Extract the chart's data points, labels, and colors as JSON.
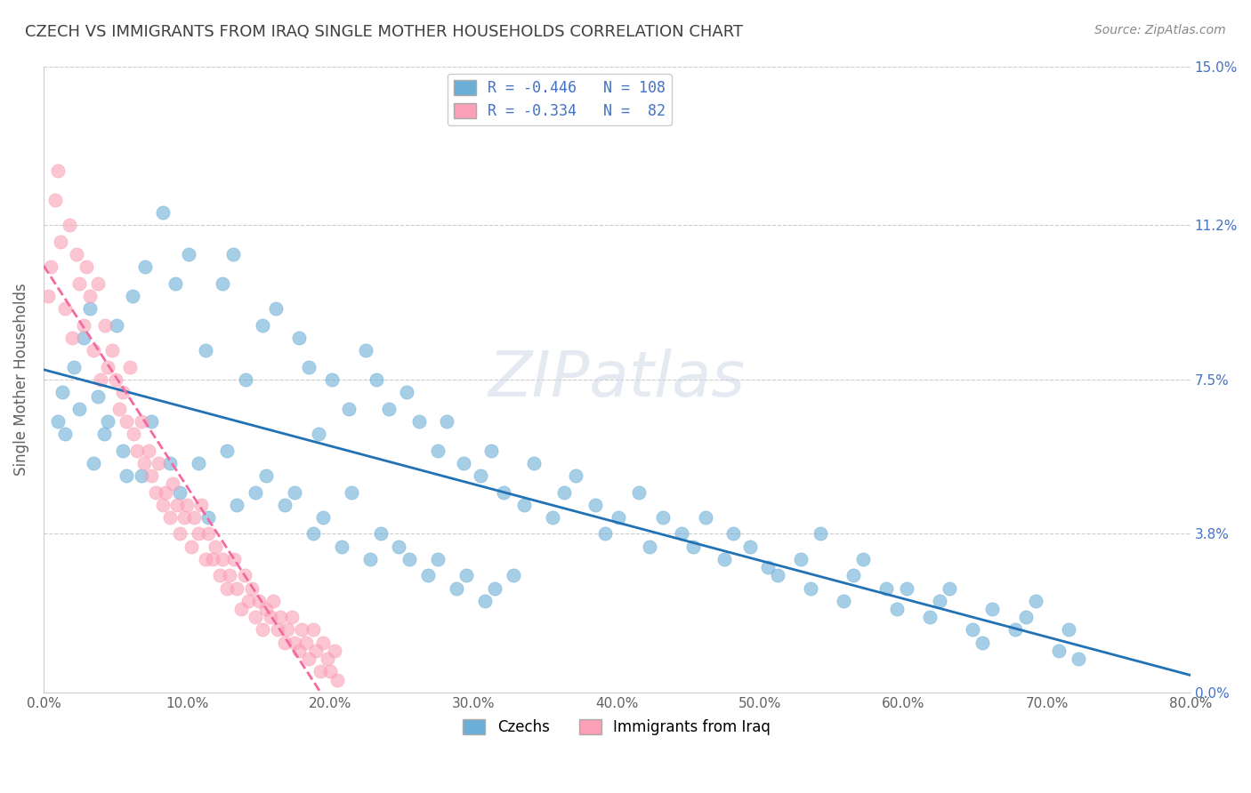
{
  "title": "CZECH VS IMMIGRANTS FROM IRAQ SINGLE MOTHER HOUSEHOLDS CORRELATION CHART",
  "source": "Source: ZipAtlas.com",
  "ylabel": "Single Mother Households",
  "xlabel_ticks": [
    "0.0%",
    "10.0%",
    "20.0%",
    "30.0%",
    "40.0%",
    "50.0%",
    "60.0%",
    "70.0%",
    "80.0%"
  ],
  "ytick_labels": [
    "0.0%",
    "3.8%",
    "7.5%",
    "11.2%",
    "15.0%"
  ],
  "ytick_values": [
    0.0,
    3.8,
    7.5,
    11.2,
    15.0
  ],
  "xlim": [
    0.0,
    80.0
  ],
  "ylim": [
    0.0,
    15.0
  ],
  "legend_label1": "R = -0.446   N = 108",
  "legend_label2": "R = -0.334   N =  82",
  "legend_group1": "Czechs",
  "legend_group2": "Immigrants from Iraq",
  "color_blue": "#6baed6",
  "color_pink": "#fa9fb5",
  "color_blue_line": "#2171b5",
  "color_pink_line": "#f768a1",
  "title_color": "#404040",
  "axis_label_color": "#606060",
  "tick_color_right": "#4472c4",
  "watermark": "ZIPatlas",
  "seed": 42,
  "blue_R": -0.446,
  "blue_N": 108,
  "pink_R": -0.334,
  "pink_N": 82,
  "blue_scatter": {
    "x": [
      1.5,
      2.1,
      2.8,
      3.2,
      3.8,
      4.5,
      5.1,
      5.8,
      6.2,
      7.1,
      8.3,
      9.2,
      10.1,
      11.3,
      12.5,
      13.2,
      14.1,
      15.3,
      16.2,
      17.8,
      18.5,
      19.2,
      20.1,
      21.3,
      22.5,
      23.2,
      24.1,
      25.3,
      26.2,
      27.5,
      28.1,
      29.3,
      30.5,
      31.2,
      32.1,
      33.5,
      34.2,
      35.5,
      36.3,
      37.1,
      38.5,
      39.2,
      40.1,
      41.5,
      42.3,
      43.2,
      44.5,
      45.3,
      46.2,
      47.5,
      48.1,
      49.3,
      50.5,
      51.2,
      52.8,
      53.5,
      54.2,
      55.8,
      56.5,
      57.2,
      58.8,
      59.5,
      60.2,
      61.8,
      62.5,
      63.2,
      64.8,
      65.5,
      66.2,
      67.8,
      68.5,
      69.2,
      70.8,
      71.5,
      72.2,
      1.0,
      1.3,
      2.5,
      3.5,
      4.2,
      5.5,
      6.8,
      7.5,
      8.8,
      9.5,
      10.8,
      11.5,
      12.8,
      13.5,
      14.8,
      15.5,
      16.8,
      17.5,
      18.8,
      19.5,
      20.8,
      21.5,
      22.8,
      23.5,
      24.8,
      25.5,
      26.8,
      27.5,
      28.8,
      29.5,
      30.8,
      31.5,
      32.8
    ],
    "y": [
      6.2,
      7.8,
      8.5,
      9.2,
      7.1,
      6.5,
      8.8,
      5.2,
      9.5,
      10.2,
      11.5,
      9.8,
      10.5,
      8.2,
      9.8,
      10.5,
      7.5,
      8.8,
      9.2,
      8.5,
      7.8,
      6.2,
      7.5,
      6.8,
      8.2,
      7.5,
      6.8,
      7.2,
      6.5,
      5.8,
      6.5,
      5.5,
      5.2,
      5.8,
      4.8,
      4.5,
      5.5,
      4.2,
      4.8,
      5.2,
      4.5,
      3.8,
      4.2,
      4.8,
      3.5,
      4.2,
      3.8,
      3.5,
      4.2,
      3.2,
      3.8,
      3.5,
      3.0,
      2.8,
      3.2,
      2.5,
      3.8,
      2.2,
      2.8,
      3.2,
      2.5,
      2.0,
      2.5,
      1.8,
      2.2,
      2.5,
      1.5,
      1.2,
      2.0,
      1.5,
      1.8,
      2.2,
      1.0,
      1.5,
      0.8,
      6.5,
      7.2,
      6.8,
      5.5,
      6.2,
      5.8,
      5.2,
      6.5,
      5.5,
      4.8,
      5.5,
      4.2,
      5.8,
      4.5,
      4.8,
      5.2,
      4.5,
      4.8,
      3.8,
      4.2,
      3.5,
      4.8,
      3.2,
      3.8,
      3.5,
      3.2,
      2.8,
      3.2,
      2.5,
      2.8,
      2.2,
      2.5,
      2.8
    ]
  },
  "pink_scatter": {
    "x": [
      0.3,
      0.5,
      0.8,
      1.0,
      1.2,
      1.5,
      1.8,
      2.0,
      2.3,
      2.5,
      2.8,
      3.0,
      3.2,
      3.5,
      3.8,
      4.0,
      4.3,
      4.5,
      4.8,
      5.0,
      5.3,
      5.5,
      5.8,
      6.0,
      6.3,
      6.5,
      6.8,
      7.0,
      7.3,
      7.5,
      7.8,
      8.0,
      8.3,
      8.5,
      8.8,
      9.0,
      9.3,
      9.5,
      9.8,
      10.0,
      10.3,
      10.5,
      10.8,
      11.0,
      11.3,
      11.5,
      11.8,
      12.0,
      12.3,
      12.5,
      12.8,
      13.0,
      13.3,
      13.5,
      13.8,
      14.0,
      14.3,
      14.5,
      14.8,
      15.0,
      15.3,
      15.5,
      15.8,
      16.0,
      16.3,
      16.5,
      16.8,
      17.0,
      17.3,
      17.5,
      17.8,
      18.0,
      18.3,
      18.5,
      18.8,
      19.0,
      19.3,
      19.5,
      19.8,
      20.0,
      20.3,
      20.5
    ],
    "y": [
      9.5,
      10.2,
      11.8,
      12.5,
      10.8,
      9.2,
      11.2,
      8.5,
      10.5,
      9.8,
      8.8,
      10.2,
      9.5,
      8.2,
      9.8,
      7.5,
      8.8,
      7.8,
      8.2,
      7.5,
      6.8,
      7.2,
      6.5,
      7.8,
      6.2,
      5.8,
      6.5,
      5.5,
      5.8,
      5.2,
      4.8,
      5.5,
      4.5,
      4.8,
      4.2,
      5.0,
      4.5,
      3.8,
      4.2,
      4.5,
      3.5,
      4.2,
      3.8,
      4.5,
      3.2,
      3.8,
      3.2,
      3.5,
      2.8,
      3.2,
      2.5,
      2.8,
      3.2,
      2.5,
      2.0,
      2.8,
      2.2,
      2.5,
      1.8,
      2.2,
      1.5,
      2.0,
      1.8,
      2.2,
      1.5,
      1.8,
      1.2,
      1.5,
      1.8,
      1.2,
      1.0,
      1.5,
      1.2,
      0.8,
      1.5,
      1.0,
      0.5,
      1.2,
      0.8,
      0.5,
      1.0,
      0.3
    ]
  }
}
